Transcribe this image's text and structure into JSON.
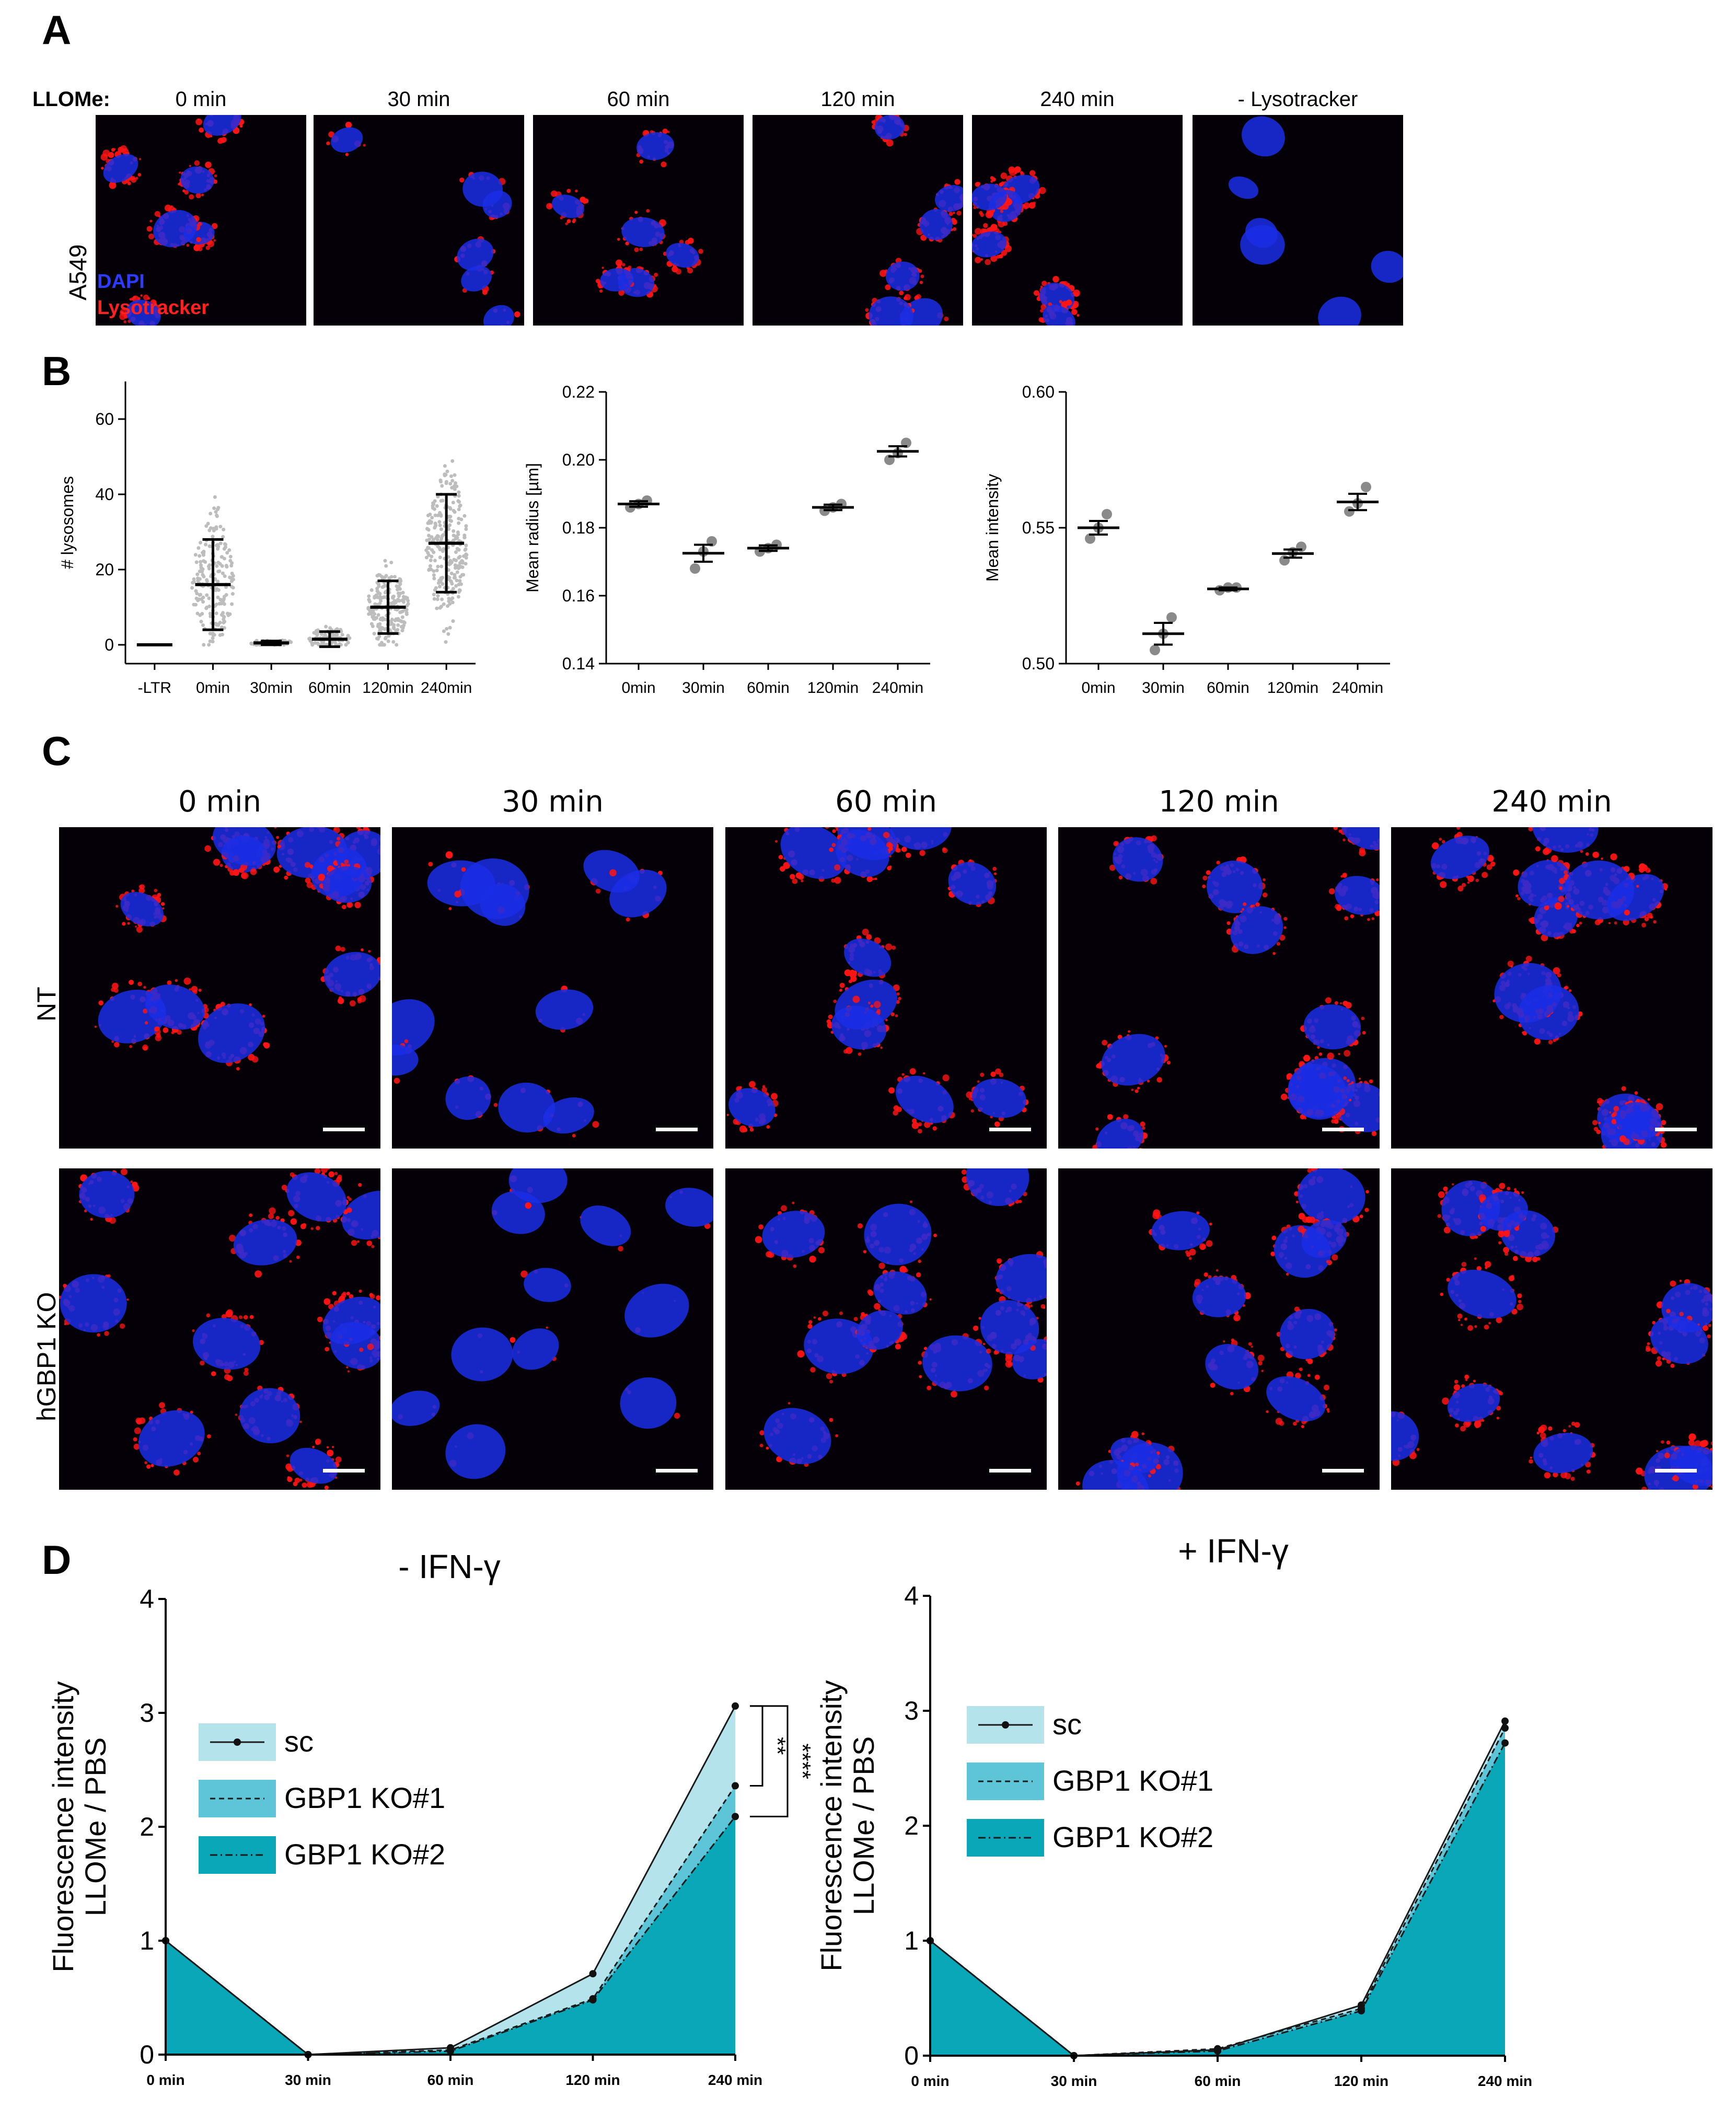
{
  "panels": {
    "A": "A",
    "B": "B",
    "C": "C",
    "D": "D"
  },
  "panel_a": {
    "treatment_label": "LLOMe:",
    "timepoints": [
      "0 min",
      "30 min",
      "60 min",
      "120 min",
      "240 min",
      "- Lysotracker"
    ],
    "row_label": "A549",
    "legend": {
      "dapi": "DAPI",
      "lysotracker": "Lysotracker"
    },
    "colors": {
      "dapi": "#1a2ee6",
      "lysotracker": "#ff1414",
      "background": "#050008"
    }
  },
  "panel_c": {
    "timepoints": [
      "0 min",
      "30 min",
      "60 min",
      "120 min",
      "240 min"
    ],
    "rows": [
      "NT",
      "hGBP1 KO"
    ]
  },
  "chart_data": [
    {
      "id": "B1",
      "type": "scatter",
      "ylabel": "# lysosomes",
      "categories": [
        "-LTR",
        "0min",
        "30min",
        "60min",
        "120min",
        "240min"
      ],
      "ylim": [
        -5,
        70
      ],
      "yticks": [
        0,
        20,
        40,
        60
      ],
      "series": [
        {
          "mean": [
            0,
            16,
            0.5,
            1.5,
            10,
            27
          ],
          "sd": [
            0,
            12,
            0.5,
            2,
            7,
            13
          ]
        }
      ]
    },
    {
      "id": "B2",
      "type": "scatter",
      "ylabel": "Mean radius [µm]",
      "categories": [
        "0min",
        "30min",
        "60min",
        "120min",
        "240min"
      ],
      "ylim": [
        0.14,
        0.22
      ],
      "yticks": [
        "0.14",
        "0.16",
        "0.18",
        "0.20",
        "0.22"
      ],
      "points": [
        [
          0.186,
          0.187,
          0.188
        ],
        [
          0.168,
          0.173,
          0.176
        ],
        [
          0.173,
          0.174,
          0.175
        ],
        [
          0.185,
          0.186,
          0.187
        ],
        [
          0.2,
          0.202,
          0.205
        ]
      ],
      "mean": [
        0.187,
        0.1725,
        0.174,
        0.186,
        0.2025
      ],
      "sem": [
        0.0008,
        0.0025,
        0.0008,
        0.0008,
        0.0015
      ]
    },
    {
      "id": "B3",
      "type": "scatter",
      "ylabel": "Mean intensity",
      "categories": [
        "0min",
        "30min",
        "60min",
        "120min",
        "240min"
      ],
      "ylim": [
        0.5,
        0.6
      ],
      "yticks": [
        "0.50",
        "0.55",
        "0.60"
      ],
      "points": [
        [
          0.546,
          0.55,
          0.555
        ],
        [
          0.505,
          0.511,
          0.517
        ],
        [
          0.527,
          0.528,
          0.528
        ],
        [
          0.538,
          0.541,
          0.543
        ],
        [
          0.556,
          0.559,
          0.565
        ]
      ],
      "mean": [
        0.55,
        0.511,
        0.5275,
        0.5405,
        0.5595
      ],
      "sem": [
        0.0025,
        0.004,
        0.0005,
        0.0015,
        0.003
      ]
    },
    {
      "id": "D1",
      "type": "area",
      "title": "- IFN-γ",
      "ylabel": [
        "Fluorescence intensity",
        "LLOMe / PBS"
      ],
      "categories": [
        "0 min",
        "30 min",
        "60 min",
        "120 min",
        "240 min"
      ],
      "ylim": [
        0,
        4
      ],
      "yticks": [
        0,
        1,
        2,
        3,
        4
      ],
      "series": [
        {
          "name": "sc",
          "values": [
            1,
            0.0,
            0.06,
            0.71,
            3.06
          ],
          "color": "#b4e3ec"
        },
        {
          "name": "GBP1 KO#1",
          "values": [
            1,
            0.0,
            0.04,
            0.49,
            2.36
          ],
          "color": "#5ec5d8"
        },
        {
          "name": "GBP1 KO#2",
          "values": [
            1,
            0.0,
            0.03,
            0.48,
            2.09
          ],
          "color": "#0aa7b8"
        }
      ],
      "significance": [
        "**",
        "****"
      ]
    },
    {
      "id": "D2",
      "type": "area",
      "title": "+ IFN-γ",
      "ylabel": [
        "Fluorescence intensity",
        "LLOMe / PBS"
      ],
      "categories": [
        "0 min",
        "30 min",
        "60 min",
        "120 min",
        "240 min"
      ],
      "ylim": [
        0,
        4
      ],
      "yticks": [
        0,
        1,
        2,
        3,
        4
      ],
      "series": [
        {
          "name": "sc",
          "values": [
            1,
            0.0,
            0.05,
            0.44,
            2.91
          ],
          "color": "#b4e3ec"
        },
        {
          "name": "GBP1 KO#1",
          "values": [
            1,
            0.0,
            0.06,
            0.41,
            2.85
          ],
          "color": "#5ec5d8"
        },
        {
          "name": "GBP1 KO#2",
          "values": [
            1,
            0.0,
            0.04,
            0.39,
            2.72
          ],
          "color": "#0aa7b8"
        }
      ]
    }
  ]
}
